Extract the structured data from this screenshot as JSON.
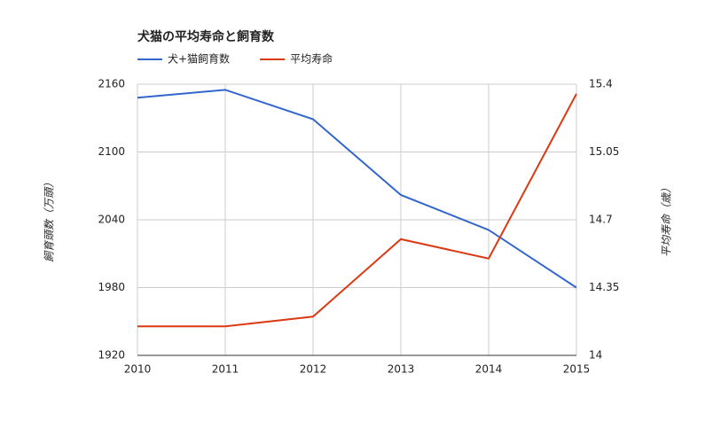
{
  "chart_data": {
    "type": "line",
    "title": "犬猫の平均寿命と飼育数",
    "x": [
      2010,
      2011,
      2012,
      2013,
      2014,
      2015
    ],
    "xlim": [
      2010,
      2015
    ],
    "xticks": [
      2010,
      2011,
      2012,
      2013,
      2014,
      2015
    ],
    "y_label": "飼育頭数（万頭）",
    "y2_label": "平均寿命（歳）",
    "ylim": [
      1920,
      2160
    ],
    "yticks": [
      1920,
      1980,
      2040,
      2100,
      2160
    ],
    "y2lim": [
      14,
      15.4
    ],
    "y2ticks": [
      14,
      14.35,
      14.7,
      15.05,
      15.4
    ],
    "grid": true,
    "legend": "top",
    "series": [
      {
        "name": "犬+猫飼育数",
        "color": "#3366cc",
        "values": [
          2148,
          2155,
          2129,
          2062,
          2031,
          1980
        ]
      },
      {
        "name": "平均寿命",
        "color": "#dc3912",
        "axis": "y2",
        "values": [
          14.15,
          14.15,
          14.2,
          14.6,
          14.5,
          15.35
        ]
      }
    ]
  }
}
